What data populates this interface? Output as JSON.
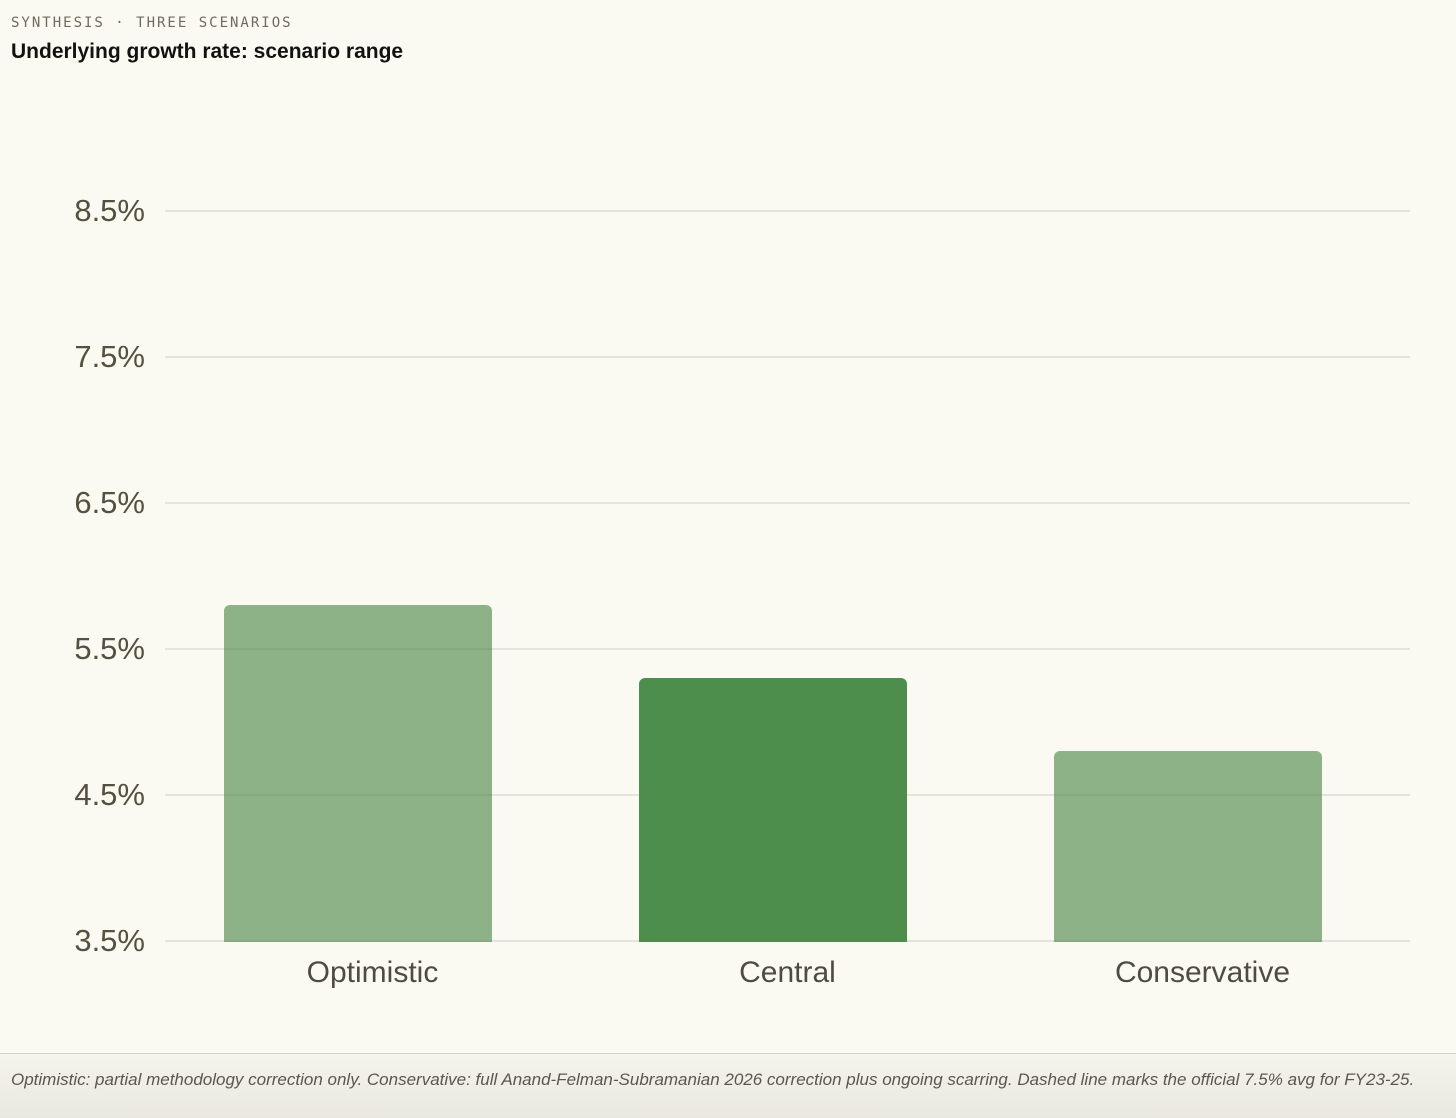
{
  "header": {
    "eyebrow": "SYNTHESIS · THREE SCENARIOS",
    "title": "Underlying growth rate: scenario range"
  },
  "chart_data": {
    "type": "bar",
    "title": "Underlying growth rate: scenario range",
    "categories": [
      "Optimistic",
      "Central",
      "Conservative"
    ],
    "values": [
      5.8,
      5.3,
      4.8
    ],
    "unit": "%",
    "bar_colors": [
      "#8DB287",
      "#4D8E4C",
      "#8DB287"
    ],
    "yticks": [
      8.5,
      7.5,
      6.5,
      5.5,
      4.5,
      3.5
    ],
    "ytick_labels": [
      "8.5%",
      "7.5%",
      "6.5%",
      "5.5%",
      "4.5%",
      "3.5%"
    ],
    "ylim": [
      3.5,
      8.5
    ],
    "xlabel": "",
    "ylabel": "",
    "grid": true,
    "legend": "none"
  },
  "footer": {
    "caption": "Optimistic: partial methodology correction only. Conservative: full Anand-Felman-Subramanian 2026 correction plus ongoing scarring. Dashed line marks the official 7.5% avg for FY23-25."
  },
  "colors": {
    "background": "#FBFAF2",
    "bar_light_green": "#8DB287",
    "bar_dark_green": "#4D8E4C",
    "gridline": "#E6E5DB",
    "tick_label": "#55503F",
    "category_label": "#4F4B42",
    "eyebrow_text": "#6F6A5C",
    "title_text": "#121212",
    "footer_text": "#5B574D"
  }
}
